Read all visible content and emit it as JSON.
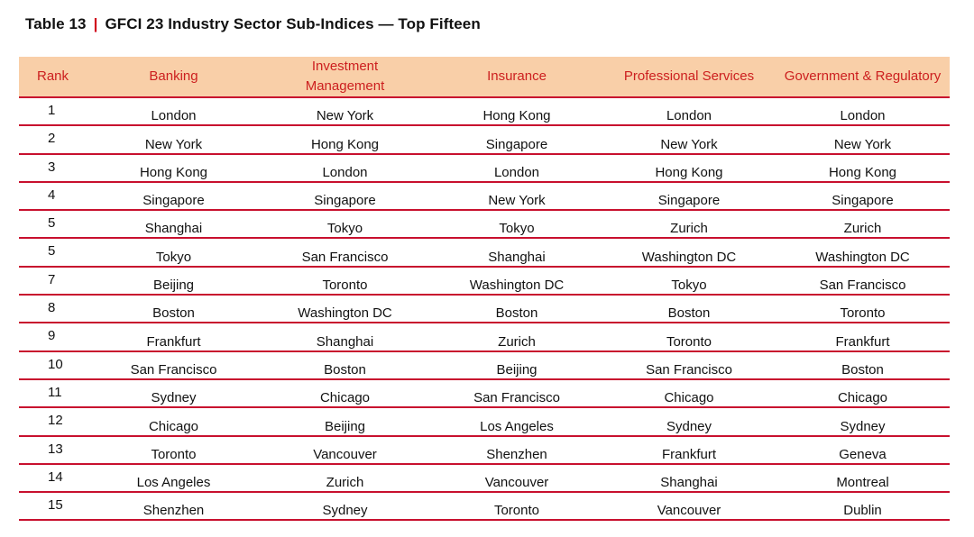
{
  "caption": {
    "table_number": "Table 13",
    "separator": "|",
    "title": "GFCI 23 Industry Sector Sub-Indices — Top Fifteen"
  },
  "columns": [
    "Rank",
    "Banking",
    "Investment Management",
    "Insurance",
    "Professional Services",
    "Government & Regulatory"
  ],
  "rows": [
    [
      "1",
      "London",
      "New York",
      "Hong Kong",
      "London",
      "London"
    ],
    [
      "2",
      "New York",
      "Hong Kong",
      "Singapore",
      "New York",
      "New York"
    ],
    [
      "3",
      "Hong Kong",
      "London",
      "London",
      "Hong Kong",
      "Hong Kong"
    ],
    [
      "4",
      "Singapore",
      "Singapore",
      "New York",
      "Singapore",
      "Singapore"
    ],
    [
      "5",
      "Shanghai",
      "Tokyo",
      "Tokyo",
      "Zurich",
      "Zurich"
    ],
    [
      "5",
      "Tokyo",
      "San Francisco",
      "Shanghai",
      "Washington DC",
      "Washington DC"
    ],
    [
      "7",
      "Beijing",
      "Toronto",
      "Washington DC",
      "Tokyo",
      "San Francisco"
    ],
    [
      "8",
      "Boston",
      "Washington DC",
      "Boston",
      "Boston",
      "Toronto"
    ],
    [
      "9",
      "Frankfurt",
      "Shanghai",
      "Zurich",
      "Toronto",
      "Frankfurt"
    ],
    [
      "10",
      "San Francisco",
      "Boston",
      "Beijing",
      "San Francisco",
      "Boston"
    ],
    [
      "11",
      "Sydney",
      "Chicago",
      "San Francisco",
      "Chicago",
      "Chicago"
    ],
    [
      "12",
      "Chicago",
      "Beijing",
      "Los Angeles",
      "Sydney",
      "Sydney"
    ],
    [
      "13",
      "Toronto",
      "Vancouver",
      "Shenzhen",
      "Frankfurt",
      "Geneva"
    ],
    [
      "14",
      "Los Angeles",
      "Zurich",
      "Vancouver",
      "Shanghai",
      "Montreal"
    ],
    [
      "15",
      "Shenzhen",
      "Sydney",
      "Toronto",
      "Vancouver",
      "Dublin"
    ]
  ],
  "colors": {
    "accent_red": "#c8102e",
    "header_background": "#f9cfa8",
    "header_text": "#cc1f1f"
  }
}
